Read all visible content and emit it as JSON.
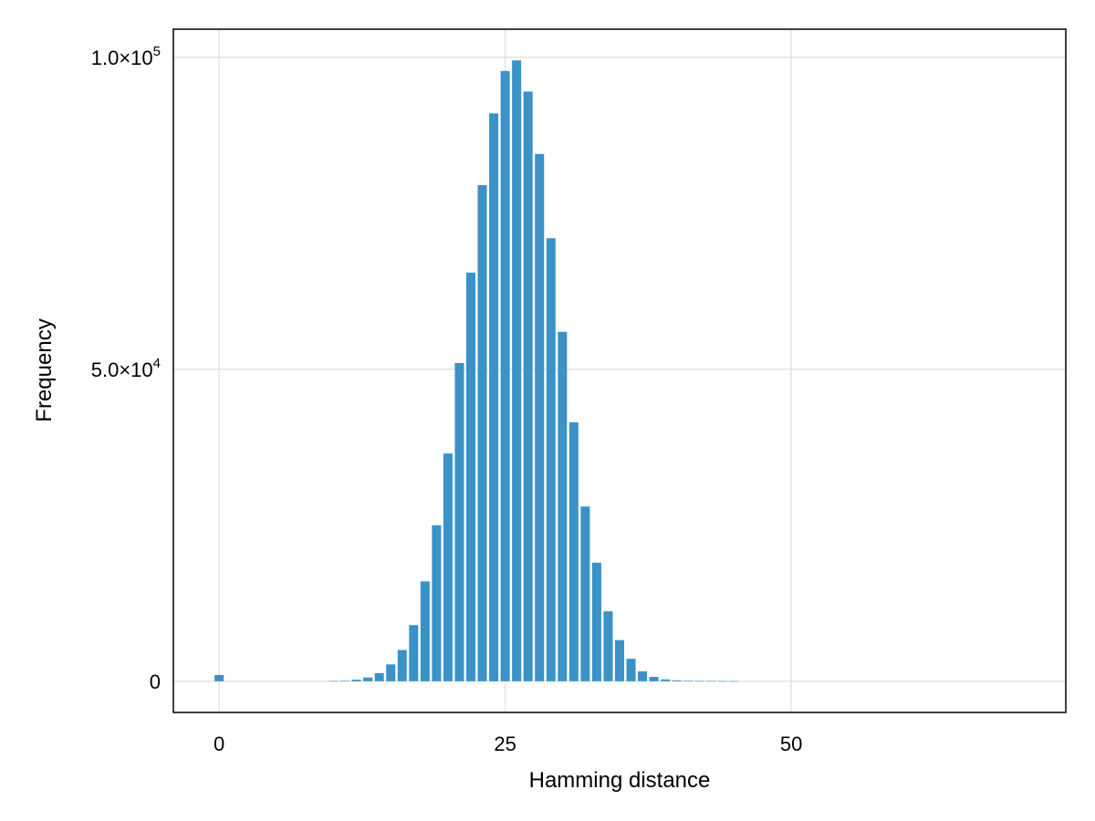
{
  "chart_data": {
    "type": "bar",
    "xlabel": "Hamming distance",
    "ylabel": "Frequency",
    "xlim": [
      -4,
      74
    ],
    "ylim": [
      -5000,
      104500
    ],
    "grid": true,
    "bar_color": "#3a92c6",
    "x_ticks": [
      {
        "value": 0,
        "label": "0"
      },
      {
        "value": 25,
        "label": "25"
      },
      {
        "value": 50,
        "label": "50"
      }
    ],
    "y_ticks": [
      {
        "value": 0,
        "mantissa": "0",
        "exponent": ""
      },
      {
        "value": 50000,
        "mantissa": "5.0×10",
        "exponent": "4"
      },
      {
        "value": 100000,
        "mantissa": "1.0×10",
        "exponent": "5"
      }
    ],
    "x": [
      0,
      1,
      2,
      3,
      4,
      5,
      6,
      7,
      8,
      9,
      10,
      11,
      12,
      13,
      14,
      15,
      16,
      17,
      18,
      19,
      20,
      21,
      22,
      23,
      24,
      25,
      26,
      27,
      28,
      29,
      30,
      31,
      32,
      33,
      34,
      35,
      36,
      37,
      38,
      39,
      40,
      41,
      42,
      43,
      44,
      45,
      46,
      47,
      48,
      49,
      50,
      51,
      52,
      53,
      54,
      55,
      56,
      57,
      58,
      59,
      60,
      61,
      62,
      63,
      64
    ],
    "values": [
      1000,
      0,
      0,
      0,
      0,
      0,
      0,
      0,
      0,
      0,
      20,
      80,
      250,
      600,
      1300,
      2700,
      5000,
      9000,
      16000,
      25000,
      36500,
      51000,
      65500,
      79500,
      91000,
      97800,
      99500,
      94500,
      84500,
      71000,
      56000,
      41500,
      28000,
      19000,
      11200,
      6600,
      3600,
      1600,
      700,
      300,
      150,
      80,
      40,
      20,
      10,
      5,
      0,
      0,
      0,
      0,
      0,
      0,
      0,
      0,
      0,
      0,
      0,
      0,
      0,
      0,
      0,
      0,
      0,
      0,
      0
    ]
  }
}
